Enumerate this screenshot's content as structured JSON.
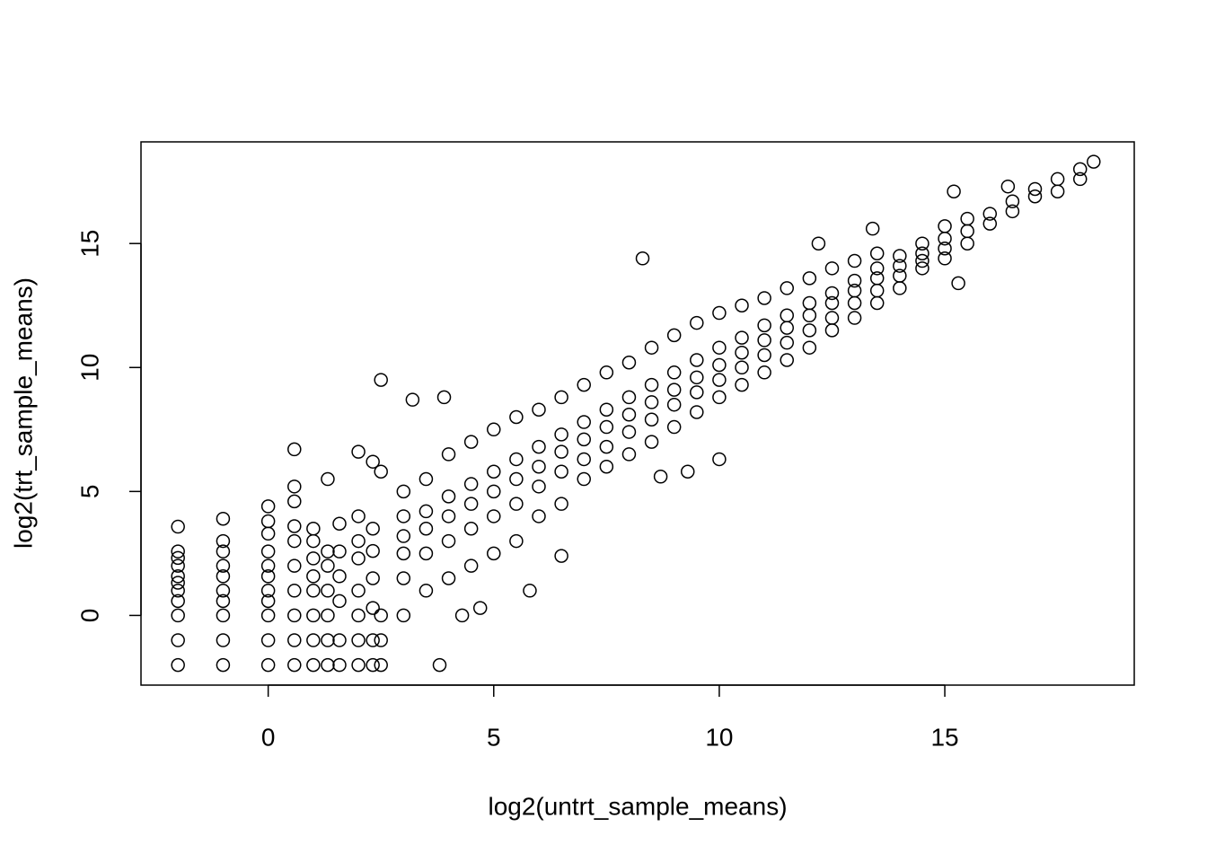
{
  "chart_data": {
    "type": "scatter",
    "xlabel": "log2(untrt_sample_means)",
    "ylabel": "log2(trt_sample_means)",
    "xlim": [
      -2.82,
      19.2
    ],
    "ylim": [
      -2.81,
      19.1
    ],
    "xticks": [
      0,
      5,
      10,
      15
    ],
    "yticks": [
      0,
      5,
      10,
      15
    ],
    "grid": false,
    "color": "#000000",
    "x": [
      -2,
      -2,
      -2,
      -2,
      -2,
      -2,
      -2,
      -2,
      -2,
      -2,
      -2,
      -1,
      -1,
      -1,
      -1,
      -1,
      -1,
      -1,
      -1,
      -1,
      -1,
      0,
      0,
      0,
      0,
      0,
      0,
      0,
      0,
      0,
      0,
      0,
      0.58,
      0.58,
      0.58,
      0.58,
      0.58,
      0.58,
      0.58,
      0.58,
      0.58,
      0.58,
      1,
      1,
      1,
      1,
      1,
      1,
      1,
      1,
      1.32,
      1.32,
      1.32,
      1.32,
      1.32,
      1.32,
      1.32,
      1.58,
      1.58,
      1.58,
      1.58,
      1.58,
      1.58,
      2,
      2,
      2,
      2,
      2,
      2,
      2,
      2,
      2.32,
      2.32,
      2.32,
      2.32,
      2.32,
      2.32,
      2.32,
      2.5,
      2.5,
      2.5,
      2.5,
      2.5,
      3,
      3,
      3,
      3,
      3,
      3,
      3.5,
      3.5,
      3.5,
      3.5,
      3.5,
      4,
      4,
      4,
      4,
      4,
      4.5,
      4.5,
      4.5,
      4.5,
      4.5,
      5,
      5,
      5,
      5,
      5,
      5.5,
      5.5,
      5.5,
      5.5,
      5.5,
      6,
      6,
      6,
      6,
      6,
      6.5,
      6.5,
      6.5,
      6.5,
      6.5,
      7,
      7,
      7,
      7,
      7,
      7.5,
      7.5,
      7.5,
      7.5,
      7.5,
      8,
      8,
      8,
      8,
      8,
      8.5,
      8.5,
      8.5,
      8.5,
      8.5,
      9,
      9,
      9,
      9,
      9,
      9.5,
      9.5,
      9.5,
      9.5,
      9.5,
      10,
      10,
      10,
      10,
      10,
      10.5,
      10.5,
      10.5,
      10.5,
      10.5,
      11,
      11,
      11,
      11,
      11,
      11.5,
      11.5,
      11.5,
      11.5,
      11.5,
      12,
      12,
      12,
      12,
      12,
      12.5,
      12.5,
      12.5,
      12.5,
      12.5,
      13,
      13,
      13,
      13,
      13,
      13.5,
      13.5,
      13.5,
      13.5,
      13.5,
      14,
      14,
      14,
      14,
      14.5,
      14.5,
      14.5,
      14.5,
      15,
      15,
      15,
      15,
      15.5,
      15.5,
      15.5,
      16,
      16,
      16.5,
      16.5,
      17,
      17,
      17.5,
      17.5,
      18,
      18,
      18.3,
      3.2,
      3.9,
      3.8,
      4.3,
      4.7,
      5.8,
      6.5,
      8.3,
      8.7,
      9.3,
      10,
      12.2,
      13.4,
      15.2,
      15.3,
      16.4
    ],
    "values": [
      -2,
      -1,
      0,
      0.58,
      1,
      1.32,
      1.58,
      2,
      2.32,
      2.58,
      3.58,
      -2,
      -1,
      0,
      0.58,
      1,
      1.58,
      2,
      2.58,
      3,
      3.9,
      -2,
      -1,
      0,
      0.58,
      1,
      1.58,
      2,
      2.58,
      3.3,
      3.8,
      4.4,
      -2,
      -1,
      0,
      1,
      2,
      3,
      3.6,
      4.6,
      5.2,
      6.7,
      -2,
      -1,
      0,
      1,
      1.58,
      2.3,
      3,
      3.5,
      -2,
      -1,
      0,
      1,
      2,
      2.58,
      5.5,
      -2,
      -1,
      0.58,
      1.58,
      2.58,
      3.7,
      -2,
      -1,
      0,
      1,
      2.3,
      3,
      4,
      6.6,
      -2,
      -1,
      0.3,
      1.5,
      2.6,
      3.5,
      6.2,
      -2,
      -1,
      0,
      5.8,
      9.5,
      0,
      1.5,
      2.5,
      3.2,
      4,
      5,
      1,
      2.5,
      3.5,
      4.2,
      5.5,
      1.5,
      3,
      4,
      4.8,
      6.5,
      2,
      3.5,
      4.5,
      5.3,
      7,
      2.5,
      4,
      5,
      5.8,
      7.5,
      3,
      4.5,
      5.5,
      6.3,
      8,
      4,
      5.2,
      6,
      6.8,
      8.3,
      4.5,
      5.8,
      6.6,
      7.3,
      8.8,
      5.5,
      6.3,
      7.1,
      7.8,
      9.3,
      6,
      6.8,
      7.6,
      8.3,
      9.8,
      6.5,
      7.4,
      8.1,
      8.8,
      10.2,
      7,
      7.9,
      8.6,
      9.3,
      10.8,
      7.6,
      8.5,
      9.1,
      9.8,
      11.3,
      8.2,
      9,
      9.6,
      10.3,
      11.8,
      8.8,
      9.5,
      10.1,
      10.8,
      12.2,
      9.3,
      10,
      10.6,
      11.2,
      12.5,
      9.8,
      10.5,
      11.1,
      11.7,
      12.8,
      10.3,
      11,
      11.6,
      12.1,
      13.2,
      10.8,
      11.5,
      12.1,
      12.6,
      13.6,
      11.5,
      12,
      12.6,
      13,
      14,
      12,
      12.6,
      13.1,
      13.5,
      14.3,
      12.6,
      13.1,
      13.6,
      14,
      14.6,
      13.2,
      13.7,
      14.1,
      14.5,
      14,
      14.3,
      14.6,
      15,
      14.4,
      14.8,
      15.2,
      15.7,
      15,
      15.5,
      16,
      15.8,
      16.2,
      16.3,
      16.7,
      16.9,
      17.2,
      17.1,
      17.6,
      17.6,
      18,
      18.3,
      8.7,
      8.8,
      -2,
      0,
      0.3,
      1,
      2.4,
      14.4,
      5.6,
      5.8,
      6.3,
      15,
      15.6,
      17.1,
      13.4,
      17.3
    ]
  }
}
